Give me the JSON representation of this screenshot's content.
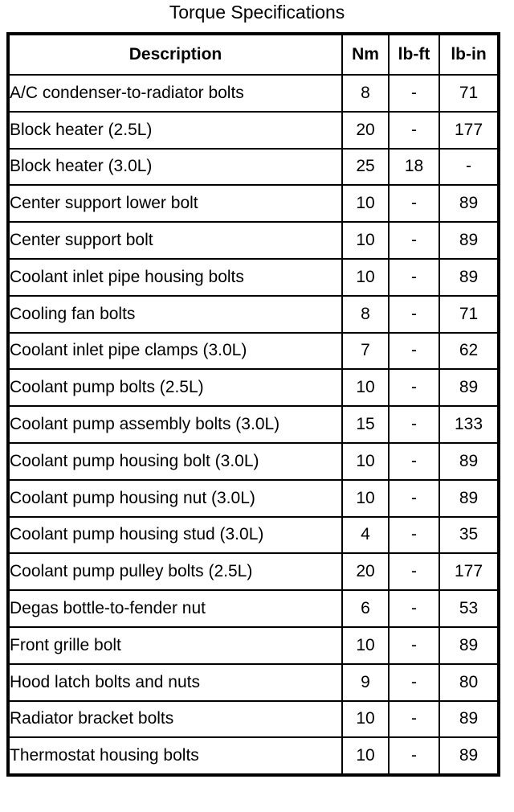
{
  "page": {
    "title": "Torque Specifications"
  },
  "colors": {
    "text": "#000000",
    "border": "#000000",
    "background": "#ffffff"
  },
  "table": {
    "columns": [
      "Description",
      "Nm",
      "lb-ft",
      "lb-in"
    ],
    "rows": [
      {
        "description": "A/C condenser-to-radiator bolts",
        "nm": "8",
        "lb_ft": "-",
        "lb_in": "71"
      },
      {
        "description": "Block heater (2.5L)",
        "nm": "20",
        "lb_ft": "-",
        "lb_in": "177"
      },
      {
        "description": "Block heater (3.0L)",
        "nm": "25",
        "lb_ft": "18",
        "lb_in": "-"
      },
      {
        "description": "Center support lower bolt",
        "nm": "10",
        "lb_ft": "-",
        "lb_in": "89"
      },
      {
        "description": "Center support bolt",
        "nm": "10",
        "lb_ft": "-",
        "lb_in": "89"
      },
      {
        "description": "Coolant inlet pipe housing bolts",
        "nm": "10",
        "lb_ft": "-",
        "lb_in": "89"
      },
      {
        "description": "Cooling fan bolts",
        "nm": "8",
        "lb_ft": "-",
        "lb_in": "71"
      },
      {
        "description": "Coolant inlet pipe clamps (3.0L)",
        "nm": "7",
        "lb_ft": "-",
        "lb_in": "62"
      },
      {
        "description": "Coolant pump bolts (2.5L)",
        "nm": "10",
        "lb_ft": "-",
        "lb_in": "89"
      },
      {
        "description": "Coolant pump assembly bolts (3.0L)",
        "nm": "15",
        "lb_ft": "-",
        "lb_in": "133"
      },
      {
        "description": "Coolant pump housing bolt (3.0L)",
        "nm": "10",
        "lb_ft": "-",
        "lb_in": "89"
      },
      {
        "description": "Coolant pump housing nut (3.0L)",
        "nm": "10",
        "lb_ft": "-",
        "lb_in": "89"
      },
      {
        "description": "Coolant pump housing stud (3.0L)",
        "nm": "4",
        "lb_ft": "-",
        "lb_in": "35"
      },
      {
        "description": "Coolant pump pulley bolts (2.5L)",
        "nm": "20",
        "lb_ft": "-",
        "lb_in": "177"
      },
      {
        "description": "Degas bottle-to-fender nut",
        "nm": "6",
        "lb_ft": "-",
        "lb_in": "53"
      },
      {
        "description": "Front grille bolt",
        "nm": "10",
        "lb_ft": "-",
        "lb_in": "89"
      },
      {
        "description": "Hood latch bolts and nuts",
        "nm": "9",
        "lb_ft": "-",
        "lb_in": "80"
      },
      {
        "description": "Radiator bracket bolts",
        "nm": "10",
        "lb_ft": "-",
        "lb_in": "89"
      },
      {
        "description": "Thermostat housing bolts",
        "nm": "10",
        "lb_ft": "-",
        "lb_in": "89"
      }
    ]
  }
}
